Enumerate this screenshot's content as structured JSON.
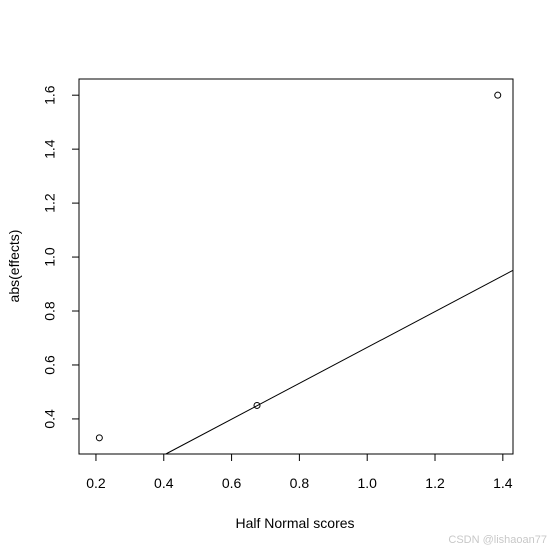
{
  "chart_data": {
    "type": "scatter",
    "title": "",
    "xlabel": "Half Normal scores",
    "ylabel": "abs(effects)",
    "xlim": [
      0.15,
      1.43
    ],
    "ylim": [
      0.27,
      1.66
    ],
    "x_ticks": [
      0.2,
      0.4,
      0.6,
      0.8,
      1.0,
      1.2,
      1.4
    ],
    "y_ticks": [
      0.4,
      0.6,
      0.8,
      1.0,
      1.2,
      1.4,
      1.6
    ],
    "x_tick_labels": [
      "0.2",
      "0.4",
      "0.6",
      "0.8",
      "1.0",
      "1.2",
      "1.4"
    ],
    "y_tick_labels": [
      "0.4",
      "0.6",
      "0.8",
      "1.0",
      "1.2",
      "1.4",
      "1.6"
    ],
    "points": [
      {
        "x": 0.21,
        "y": 0.33
      },
      {
        "x": 0.675,
        "y": 0.45
      },
      {
        "x": 1.385,
        "y": 1.6
      }
    ],
    "reference_line": {
      "intercept": 0.0,
      "slope": 0.665
    },
    "grid": false,
    "marker": "open-circle",
    "colors": {
      "points": "#000000",
      "line": "#000000",
      "axes": "#000000",
      "background": "#ffffff"
    }
  },
  "watermark": "CSDN @lishaoan77"
}
